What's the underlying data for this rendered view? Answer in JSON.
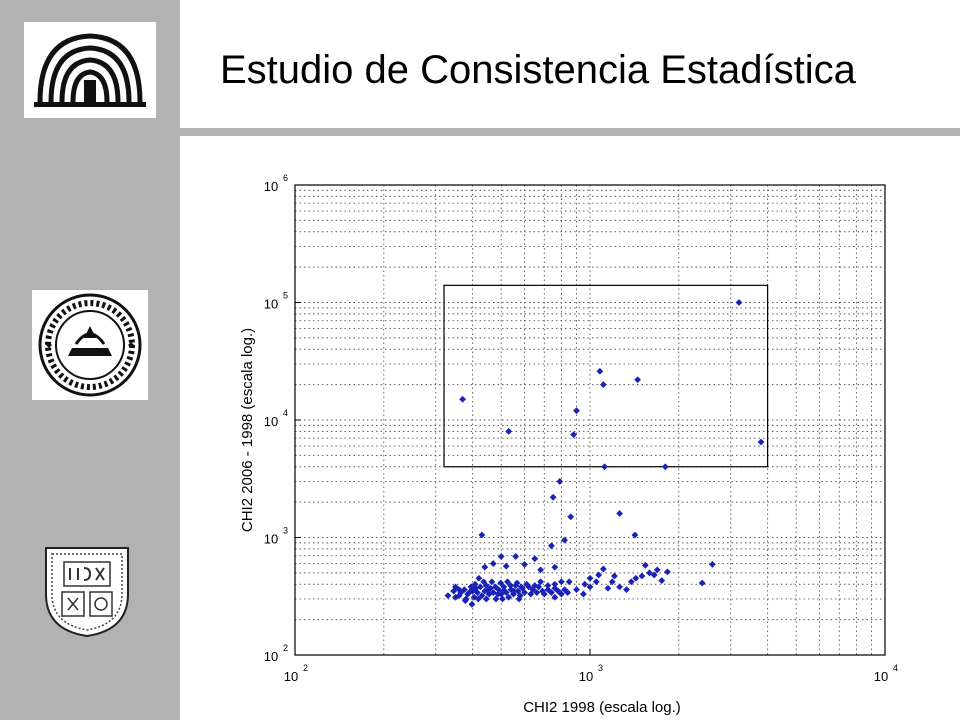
{
  "slide": {
    "title": "Estudio de Consistencia Estadística"
  },
  "logos": {
    "logo1": "ucv-aula-magna-logo",
    "logo2": "universidad-central-seal",
    "logo3": "ucab-shield"
  },
  "colors": {
    "sidebar": "#b2b2b2",
    "points": "#1a22b8",
    "axis": "#000000"
  },
  "chart_data": {
    "type": "scatter",
    "title": "",
    "xlabel": "CHI2 1998 (escala log.)",
    "ylabel": "CHI2 2006 - 1998 (escala log.)",
    "xscale": "log",
    "yscale": "log",
    "xlim": [
      100,
      10000
    ],
    "ylim": [
      100,
      1000000
    ],
    "xticks": [
      {
        "base": "10",
        "exp": "2",
        "value": 100
      },
      {
        "base": "10",
        "exp": "3",
        "value": 1000
      },
      {
        "base": "10",
        "exp": "4",
        "value": 10000
      }
    ],
    "yticks": [
      {
        "base": "10",
        "exp": "2",
        "value": 100
      },
      {
        "base": "10",
        "exp": "3",
        "value": 1000
      },
      {
        "base": "10",
        "exp": "4",
        "value": 10000
      },
      {
        "base": "10",
        "exp": "5",
        "value": 100000
      },
      {
        "base": "10",
        "exp": "6",
        "value": 1000000
      }
    ],
    "grid": true,
    "legend": false,
    "highlight_box": {
      "x": [
        320,
        4000
      ],
      "y": [
        4000,
        140000
      ]
    },
    "points": [
      [
        3200,
        100000
      ],
      [
        1080,
        26000
      ],
      [
        1450,
        22000
      ],
      [
        1110,
        20000
      ],
      [
        370,
        15000
      ],
      [
        900,
        12000
      ],
      [
        880,
        7500
      ],
      [
        530,
        8000
      ],
      [
        3800,
        6500
      ],
      [
        1120,
        4000
      ],
      [
        1800,
        4000
      ],
      [
        790,
        3000
      ],
      [
        750,
        2200
      ],
      [
        860,
        1500
      ],
      [
        1260,
        1600
      ],
      [
        1420,
        1050
      ],
      [
        430,
        1050
      ],
      [
        740,
        850
      ],
      [
        820,
        950
      ],
      [
        2600,
        590
      ],
      [
        2400,
        410
      ],
      [
        1830,
        510
      ],
      [
        1690,
        530
      ],
      [
        1590,
        500
      ],
      [
        1540,
        580
      ],
      [
        1430,
        450
      ],
      [
        1330,
        360
      ],
      [
        1260,
        380
      ],
      [
        1190,
        420
      ],
      [
        1110,
        540
      ],
      [
        1070,
        480
      ],
      [
        1000,
        380
      ],
      [
        960,
        400
      ],
      [
        900,
        360
      ],
      [
        850,
        420
      ],
      [
        760,
        560
      ],
      [
        680,
        530
      ],
      [
        650,
        660
      ],
      [
        600,
        590
      ],
      [
        560,
        690
      ],
      [
        520,
        570
      ],
      [
        500,
        690
      ],
      [
        470,
        600
      ],
      [
        440,
        560
      ],
      [
        420,
        450
      ],
      [
        400,
        350
      ],
      [
        380,
        300
      ],
      [
        360,
        320
      ],
      [
        330,
        320
      ],
      [
        345,
        350
      ],
      [
        350,
        380
      ],
      [
        365,
        340
      ],
      [
        375,
        360
      ],
      [
        385,
        330
      ],
      [
        395,
        380
      ],
      [
        405,
        310
      ],
      [
        410,
        370
      ],
      [
        415,
        340
      ],
      [
        425,
        380
      ],
      [
        430,
        320
      ],
      [
        440,
        350
      ],
      [
        445,
        390
      ],
      [
        455,
        330
      ],
      [
        460,
        370
      ],
      [
        470,
        340
      ],
      [
        480,
        300
      ],
      [
        490,
        360
      ],
      [
        500,
        330
      ],
      [
        510,
        380
      ],
      [
        520,
        340
      ],
      [
        530,
        310
      ],
      [
        540,
        360
      ],
      [
        550,
        330
      ],
      [
        560,
        390
      ],
      [
        570,
        350
      ],
      [
        580,
        320
      ],
      [
        590,
        370
      ],
      [
        600,
        340
      ],
      [
        620,
        380
      ],
      [
        630,
        330
      ],
      [
        640,
        360
      ],
      [
        660,
        340
      ],
      [
        670,
        380
      ],
      [
        690,
        350
      ],
      [
        700,
        330
      ],
      [
        720,
        360
      ],
      [
        740,
        340
      ],
      [
        760,
        370
      ],
      [
        780,
        350
      ],
      [
        800,
        330
      ],
      [
        820,
        360
      ],
      [
        840,
        340
      ],
      [
        350,
        310
      ],
      [
        360,
        360
      ],
      [
        378,
        290
      ],
      [
        392,
        345
      ],
      [
        408,
        400
      ],
      [
        418,
        300
      ],
      [
        436,
        420
      ],
      [
        452,
        355
      ],
      [
        465,
        420
      ],
      [
        478,
        380
      ],
      [
        488,
        330
      ],
      [
        498,
        410
      ],
      [
        512,
        355
      ],
      [
        525,
        420
      ],
      [
        538,
        390
      ],
      [
        552,
        350
      ],
      [
        566,
        410
      ],
      [
        585,
        380
      ],
      [
        610,
        400
      ],
      [
        650,
        390
      ],
      [
        680,
        420
      ],
      [
        720,
        390
      ],
      [
        760,
        400
      ],
      [
        800,
        420
      ],
      [
        1050,
        420
      ],
      [
        1150,
        370
      ],
      [
        1210,
        470
      ],
      [
        1380,
        420
      ],
      [
        1500,
        470
      ],
      [
        1650,
        480
      ],
      [
        1750,
        430
      ],
      [
        398,
        270
      ],
      [
        445,
        300
      ],
      [
        505,
        300
      ],
      [
        575,
        300
      ],
      [
        760,
        310
      ],
      [
        950,
        330
      ],
      [
        1000,
        450
      ]
    ]
  }
}
